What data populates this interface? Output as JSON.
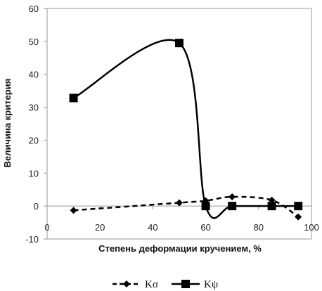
{
  "chart_data": {
    "type": "line",
    "xlabel": "Степень деформации кручением, %",
    "ylabel": "Величина критерия",
    "xlim": [
      0,
      100
    ],
    "ylim": [
      -10,
      60
    ],
    "x_ticks": [
      0,
      20,
      40,
      60,
      80,
      100
    ],
    "y_ticks": [
      -10,
      0,
      10,
      20,
      30,
      40,
      50,
      60
    ],
    "grid": false,
    "legend_position": "bottom",
    "series": [
      {
        "name": "Kσ",
        "line_style": "dashed",
        "marker": "diamond",
        "color": "#000000",
        "x": [
          10,
          50,
          60,
          70,
          85,
          95
        ],
        "y": [
          -1.3,
          1.0,
          1.6,
          2.8,
          1.8,
          -3.3
        ]
      },
      {
        "name": "Kψ",
        "line_style": "solid",
        "marker": "square",
        "color": "#000000",
        "x": [
          10,
          50,
          60,
          70,
          85,
          95
        ],
        "y": [
          32.8,
          49.5,
          0.0,
          0.0,
          0.0,
          0.0
        ]
      }
    ]
  }
}
